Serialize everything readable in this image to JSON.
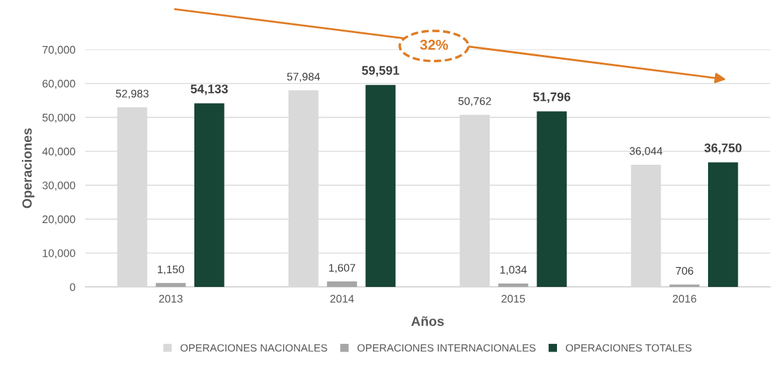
{
  "chart_data": {
    "type": "bar",
    "xlabel": "Años",
    "ylabel": "Operaciones",
    "categories": [
      "2013",
      "2014",
      "2015",
      "2016"
    ],
    "series": [
      {
        "name": "OPERACIONES NACIONALES",
        "color": "#d9d9d9",
        "values": [
          52983,
          57984,
          50762,
          36044
        ],
        "value_labels": [
          "52,983",
          "57,984",
          "50,762",
          "36,044"
        ]
      },
      {
        "name": "OPERACIONES INTERNACIONALES",
        "color": "#a6a6a6",
        "values": [
          1150,
          1607,
          1034,
          706
        ],
        "value_labels": [
          "1,150",
          "1,607",
          "1,034",
          "706"
        ]
      },
      {
        "name": "OPERACIONES TOTALES",
        "color": "#174536",
        "values": [
          54133,
          59591,
          51796,
          36750
        ],
        "value_labels": [
          "54,133",
          "59,591",
          "51,796",
          "36,750"
        ]
      }
    ],
    "ylim": [
      0,
      70000
    ],
    "yticks": [
      {
        "value": 0,
        "label": "0"
      },
      {
        "value": 10000,
        "label": "10,000"
      },
      {
        "value": 20000,
        "label": "20,000"
      },
      {
        "value": 30000,
        "label": "30,000"
      },
      {
        "value": 40000,
        "label": "40,000"
      },
      {
        "value": 50000,
        "label": "50,000"
      },
      {
        "value": 60000,
        "label": "60,000"
      },
      {
        "value": 70000,
        "label": "70,000"
      }
    ],
    "grid": "y",
    "legend": "bottom",
    "annotations": [
      "32%"
    ]
  }
}
